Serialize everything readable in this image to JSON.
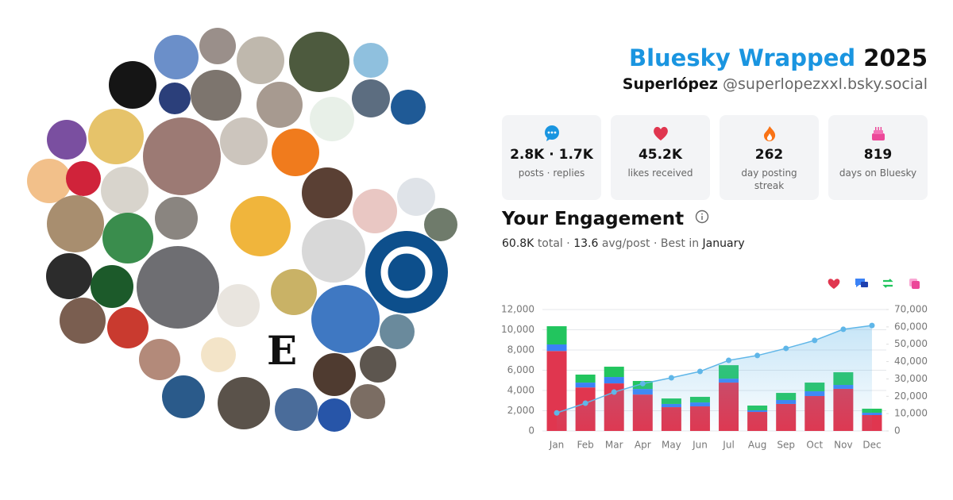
{
  "header": {
    "title": "Bluesky Wrapped",
    "year": "2025",
    "display_name": "Superlópez",
    "handle": "@superlopezxxl.bsky.social"
  },
  "stats": [
    {
      "value": "2.8K · 1.7K",
      "label": "posts · replies"
    },
    {
      "value": "45.2K",
      "label": "likes received"
    },
    {
      "value": "262",
      "label": "day posting streak"
    },
    {
      "value": "819",
      "label": "days on Bluesky"
    }
  ],
  "engagement": {
    "title": "Your Engagement",
    "total": "60.8K",
    "total_label": "total ·",
    "avg": "13.6",
    "avg_label": "avg/post · Best in",
    "best": "January"
  },
  "chart_data": {
    "type": "bar",
    "categories": [
      "Jan",
      "Feb",
      "Mar",
      "Apr",
      "May",
      "Jun",
      "Jul",
      "Aug",
      "Sep",
      "Oct",
      "Nov",
      "Dec"
    ],
    "series": [
      {
        "color": "#e0364f",
        "values": [
          7900,
          4300,
          4700,
          3600,
          2350,
          2430,
          4780,
          1880,
          2670,
          3450,
          4160,
          1570
        ]
      },
      {
        "color": "#3b82f6",
        "values": [
          650,
          480,
          630,
          550,
          320,
          390,
          390,
          160,
          390,
          470,
          390,
          230
        ]
      },
      {
        "color": "#22c55e",
        "values": [
          1800,
          790,
          1020,
          790,
          540,
          550,
          1330,
          470,
          700,
          860,
          1250,
          400
        ]
      },
      {
        "type": "line",
        "axis": "y2",
        "color": "#5fb6e8",
        "values": [
          10400,
          16000,
          22400,
          27300,
          30650,
          34300,
          40700,
          43500,
          47600,
          52200,
          58600,
          60800
        ]
      }
    ],
    "ylim": [
      0,
      12000
    ],
    "yticks": [
      0,
      {
        "value": 2000,
        "label": "2,000"
      },
      {
        "value": 4000,
        "label": "4,000"
      },
      {
        "value": 6000,
        "label": "6,000"
      },
      {
        "value": 8000,
        "label": "8,000"
      },
      {
        "value": 10000,
        "label": "10,000"
      },
      {
        "value": 12000,
        "label": "12,000"
      }
    ],
    "y2lim": [
      0,
      70000
    ],
    "y2ticks": [
      0,
      {
        "value": 10000,
        "label": "10,000"
      },
      {
        "value": 20000,
        "label": "20,000"
      },
      {
        "value": 30000,
        "label": "30,000"
      },
      {
        "value": 40000,
        "label": "40,000"
      },
      {
        "value": 50000,
        "label": "50,000"
      },
      {
        "value": 60000,
        "label": "60,000"
      },
      {
        "value": 70000,
        "label": "70,000"
      }
    ],
    "grid": true
  }
}
